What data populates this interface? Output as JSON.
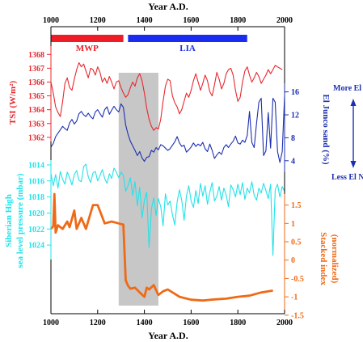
{
  "colors": {
    "tsi": "#e8282e",
    "junco": "#1c2fb0",
    "slp": "#21e3ea",
    "stack": "#ef6a16",
    "mwp_bar": "#ee1c24",
    "lia_bar": "#1a2cf0",
    "band": "#c7c7c7",
    "axis": "#000000"
  },
  "chart_data": {
    "type": "line",
    "title": "Year A.D.",
    "xlabel": "Year A.D.",
    "xlim": [
      1000,
      2000
    ],
    "x_ticks": [
      "1000",
      "1200",
      "1400",
      "1600",
      "1800",
      "2000"
    ],
    "periods": [
      {
        "label": "MWP",
        "start": 1000,
        "end": 1310
      },
      {
        "label": "LIA",
        "start": 1330,
        "end": 1840
      }
    ],
    "shaded_interval": [
      1290,
      1460
    ],
    "axes": [
      {
        "key": "tsi",
        "ylabel": "TSI (W/m²)",
        "side": "left",
        "ylim": [
          1361.7,
          1368.6
        ],
        "ticks": [
          "1362",
          "1363",
          "1364",
          "1365",
          "1366",
          "1367",
          "1368"
        ],
        "x": [
          1000,
          1010,
          1020,
          1030,
          1040,
          1050,
          1060,
          1070,
          1080,
          1090,
          1100,
          1110,
          1120,
          1130,
          1140,
          1150,
          1160,
          1170,
          1180,
          1190,
          1200,
          1210,
          1220,
          1230,
          1240,
          1250,
          1260,
          1270,
          1280,
          1290,
          1300,
          1310,
          1320,
          1330,
          1340,
          1350,
          1360,
          1370,
          1380,
          1390,
          1400,
          1410,
          1420,
          1430,
          1440,
          1450,
          1460,
          1470,
          1480,
          1490,
          1500,
          1510,
          1520,
          1530,
          1540,
          1550,
          1560,
          1570,
          1580,
          1590,
          1600,
          1610,
          1620,
          1630,
          1640,
          1650,
          1660,
          1670,
          1680,
          1690,
          1700,
          1710,
          1720,
          1730,
          1740,
          1750,
          1760,
          1770,
          1780,
          1790,
          1800,
          1810,
          1820,
          1830,
          1840,
          1850,
          1860,
          1870,
          1880,
          1890,
          1900,
          1910,
          1920,
          1930,
          1940,
          1950,
          1960,
          1970,
          1980,
          1990,
          2000
        ],
        "values": [
          1366.0,
          1365.2,
          1364.2,
          1363.8,
          1363.5,
          1364.6,
          1365.9,
          1366.3,
          1365.6,
          1365.4,
          1366.2,
          1366.9,
          1367.4,
          1367.1,
          1367.3,
          1366.8,
          1366.3,
          1367.0,
          1366.9,
          1366.5,
          1367.1,
          1366.7,
          1366.0,
          1366.3,
          1365.9,
          1366.4,
          1366.0,
          1365.5,
          1366.0,
          1366.1,
          1365.6,
          1365.2,
          1364.9,
          1365.1,
          1365.6,
          1366.0,
          1365.7,
          1366.3,
          1366.6,
          1366.1,
          1365.2,
          1364.1,
          1363.3,
          1362.8,
          1362.5,
          1362.7,
          1362.6,
          1363.3,
          1364.6,
          1365.7,
          1366.2,
          1366.1,
          1365.0,
          1364.5,
          1364.2,
          1363.7,
          1364.0,
          1364.6,
          1365.2,
          1364.9,
          1365.4,
          1366.1,
          1366.6,
          1366.0,
          1365.4,
          1365.9,
          1366.5,
          1366.1,
          1365.3,
          1365.0,
          1365.8,
          1366.7,
          1366.2,
          1365.5,
          1365.9,
          1366.6,
          1366.9,
          1367.0,
          1366.5,
          1365.4,
          1364.6,
          1364.9,
          1366.0,
          1366.8,
          1367.1,
          1366.5,
          1366.0,
          1366.3,
          1366.7,
          1366.4,
          1365.9,
          1366.2,
          1366.5,
          1366.9,
          1366.6,
          1366.9,
          1367.2,
          1367.1,
          1367.0,
          1366.9,
          null
        ]
      },
      {
        "key": "junco",
        "ylabel": "El Junco sand (%)",
        "side": "right",
        "ylim": [
          2,
          17.5
        ],
        "ticks": [
          "4",
          "8",
          "12",
          "16"
        ],
        "annotation_top": "More El Niños",
        "annotation_bottom": "Less El Niños",
        "x": [
          1000,
          1010,
          1020,
          1030,
          1040,
          1050,
          1060,
          1070,
          1080,
          1090,
          1100,
          1110,
          1120,
          1130,
          1140,
          1150,
          1160,
          1170,
          1180,
          1190,
          1200,
          1210,
          1220,
          1230,
          1240,
          1250,
          1260,
          1270,
          1280,
          1290,
          1300,
          1310,
          1320,
          1330,
          1340,
          1350,
          1360,
          1370,
          1380,
          1390,
          1400,
          1410,
          1420,
          1430,
          1440,
          1450,
          1460,
          1470,
          1480,
          1490,
          1500,
          1510,
          1520,
          1530,
          1540,
          1550,
          1560,
          1570,
          1580,
          1590,
          1600,
          1610,
          1620,
          1630,
          1640,
          1650,
          1660,
          1670,
          1680,
          1690,
          1700,
          1710,
          1720,
          1730,
          1740,
          1750,
          1760,
          1770,
          1780,
          1790,
          1800,
          1810,
          1820,
          1830,
          1840,
          1850,
          1860,
          1870,
          1880,
          1890,
          1900,
          1910,
          1920,
          1930,
          1940,
          1950,
          1960,
          1970,
          1980,
          1990,
          2000
        ],
        "values": [
          6.4,
          7.0,
          8.2,
          8.8,
          9.4,
          10.0,
          9.6,
          9.3,
          10.6,
          11.2,
          10.4,
          10.9,
          12.2,
          12.6,
          12.0,
          11.7,
          12.3,
          11.7,
          11.3,
          12.5,
          12.9,
          12.2,
          11.6,
          12.9,
          13.4,
          12.1,
          12.8,
          13.5,
          12.9,
          12.5,
          13.9,
          13.3,
          10.2,
          8.6,
          7.4,
          6.6,
          5.8,
          4.9,
          5.6,
          4.5,
          3.9,
          4.6,
          4.7,
          5.8,
          5.5,
          6.3,
          5.9,
          6.8,
          6.6,
          6.2,
          5.8,
          6.1,
          6.7,
          7.3,
          8.2,
          7.1,
          6.5,
          6.7,
          5.5,
          5.9,
          6.4,
          7.1,
          6.5,
          6.9,
          6.6,
          7.2,
          6.1,
          5.6,
          6.9,
          5.8,
          4.4,
          5.0,
          5.5,
          5.1,
          6.3,
          6.8,
          6.3,
          6.9,
          7.4,
          8.3,
          7.1,
          6.9,
          7.6,
          7.2,
          8.4,
          12.6,
          7.2,
          6.3,
          10.5,
          14.2,
          14.9,
          4.9,
          5.7,
          12.4,
          6.2,
          14.9,
          14.2,
          5.6,
          3.7,
          5.6,
          15.3
        ]
      },
      {
        "key": "slp",
        "ylabel": "Siberian High sea level pressure (mbar)",
        "side": "left",
        "ylim": [
          1013.4,
          1025.8
        ],
        "inverted": true,
        "ticks": [
          "1014",
          "1016",
          "1018",
          "1020",
          "1022",
          "1024"
        ],
        "x": [
          1000,
          1010,
          1020,
          1030,
          1040,
          1050,
          1060,
          1070,
          1080,
          1090,
          1100,
          1110,
          1120,
          1130,
          1140,
          1150,
          1160,
          1170,
          1180,
          1190,
          1200,
          1210,
          1220,
          1230,
          1240,
          1250,
          1260,
          1270,
          1280,
          1290,
          1300,
          1310,
          1320,
          1330,
          1340,
          1350,
          1360,
          1370,
          1380,
          1390,
          1400,
          1410,
          1420,
          1430,
          1440,
          1450,
          1460,
          1470,
          1480,
          1490,
          1500,
          1510,
          1520,
          1530,
          1540,
          1550,
          1560,
          1570,
          1580,
          1590,
          1600,
          1610,
          1620,
          1630,
          1640,
          1650,
          1660,
          1670,
          1680,
          1690,
          1700,
          1710,
          1720,
          1730,
          1740,
          1750,
          1760,
          1770,
          1780,
          1790,
          1800,
          1810,
          1820,
          1830,
          1840,
          1850,
          1860,
          1870,
          1880,
          1890,
          1900,
          1910,
          1920,
          1930,
          1940,
          1950,
          1960,
          1970,
          1980,
          1990,
          2000
        ],
        "values": [
          1015.1,
          1016.6,
          1015.2,
          1016.9,
          1014.8,
          1015.8,
          1016.4,
          1014.9,
          1015.6,
          1016.5,
          1015.2,
          1014.7,
          1015.9,
          1016.1,
          1014.2,
          1013.9,
          1015.5,
          1016.2,
          1015.0,
          1014.8,
          1016.0,
          1015.3,
          1014.6,
          1015.7,
          1016.3,
          1015.1,
          1015.7,
          1014.4,
          1014.9,
          1015.6,
          1014.9,
          1015.3,
          1017.3,
          1016.6,
          1015.6,
          1017.8,
          1016.1,
          1019.1,
          1016.8,
          1020.6,
          1018.4,
          1017.4,
          1024.3,
          1019.5,
          1018.1,
          1020.3,
          1018.2,
          1019.2,
          1021.6,
          1017.6,
          1019.0,
          1018.5,
          1020.2,
          1021.5,
          1018.6,
          1017.1,
          1018.4,
          1020.9,
          1017.9,
          1016.6,
          1018.5,
          1019.3,
          1017.2,
          1018.8,
          1016.3,
          1017.9,
          1016.6,
          1018.9,
          1017.4,
          1016.2,
          1018.5,
          1017.9,
          1016.7,
          1018.4,
          1016.9,
          1017.8,
          1019.2,
          1016.5,
          1017.1,
          1018.0,
          1016.4,
          1017.7,
          1016.2,
          1018.3,
          1016.9,
          1017.5,
          1016.1,
          1017.8,
          1018.4,
          1016.9,
          1017.5,
          1016.3,
          1017.2,
          1018.2,
          1016.4,
          1025.3,
          1017.1,
          1016.4,
          1018.0,
          1016.7,
          1017.3
        ]
      },
      {
        "key": "stack",
        "ylabel": "Stacked index (normalized)",
        "side": "right",
        "ylim": [
          -1.35,
          1.8
        ],
        "ticks": [
          "1.5",
          "1",
          "0.5",
          "0",
          "-0.5",
          "-1",
          "-1.5"
        ],
        "x": [
          1000,
          1010,
          1015,
          1020,
          1030,
          1050,
          1070,
          1080,
          1100,
          1110,
          1130,
          1150,
          1180,
          1200,
          1230,
          1260,
          1290,
          1300,
          1310,
          1320,
          1330,
          1340,
          1360,
          1380,
          1400,
          1410,
          1420,
          1440,
          1460,
          1480,
          1500,
          1550,
          1600,
          1650,
          1700,
          1750,
          1800,
          1850,
          1900,
          1950
        ],
        "values": [
          0.85,
          0.92,
          1.8,
          0.75,
          0.95,
          0.85,
          1.05,
          0.9,
          1.35,
          0.85,
          1.15,
          0.85,
          1.5,
          1.5,
          1.0,
          1.05,
          1.0,
          0.98,
          0.97,
          -0.55,
          -0.7,
          -0.78,
          -0.75,
          -0.88,
          -1.0,
          -0.75,
          -0.8,
          -0.68,
          -0.95,
          -0.85,
          -0.8,
          -1.0,
          -1.08,
          -1.1,
          -1.07,
          -1.05,
          -1.0,
          -0.97,
          -0.88,
          -0.83
        ]
      }
    ]
  }
}
